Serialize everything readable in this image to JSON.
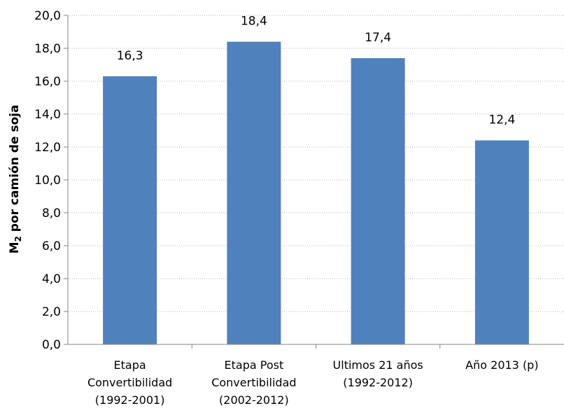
{
  "chart_data": {
    "type": "bar",
    "title": "",
    "ylabel_main": "M",
    "ylabel_sub": "2",
    "ylabel_rest": " por camión de soja",
    "xlabel": "",
    "ylim": [
      0,
      20
    ],
    "ytick_step": 2,
    "ytick_labels": [
      "0,0",
      "2,0",
      "4,0",
      "6,0",
      "8,0",
      "10,0",
      "12,0",
      "14,0",
      "16,0",
      "18,0",
      "20,0"
    ],
    "grid": true,
    "bar_color": "#4f81bd",
    "categories": [
      {
        "lines": [
          "Etapa",
          "Convertibilidad",
          "(1992-2001)"
        ]
      },
      {
        "lines": [
          "Etapa Post",
          "Convertibilidad",
          "(2002-2012)"
        ]
      },
      {
        "lines": [
          "Ultimos 21 años",
          "(1992-2012)"
        ]
      },
      {
        "lines": [
          "Año 2013 (p)"
        ]
      }
    ],
    "values": [
      16.3,
      18.4,
      17.4,
      12.4
    ],
    "data_labels": [
      "16,3",
      "18,4",
      "17,4",
      "12,4"
    ]
  }
}
